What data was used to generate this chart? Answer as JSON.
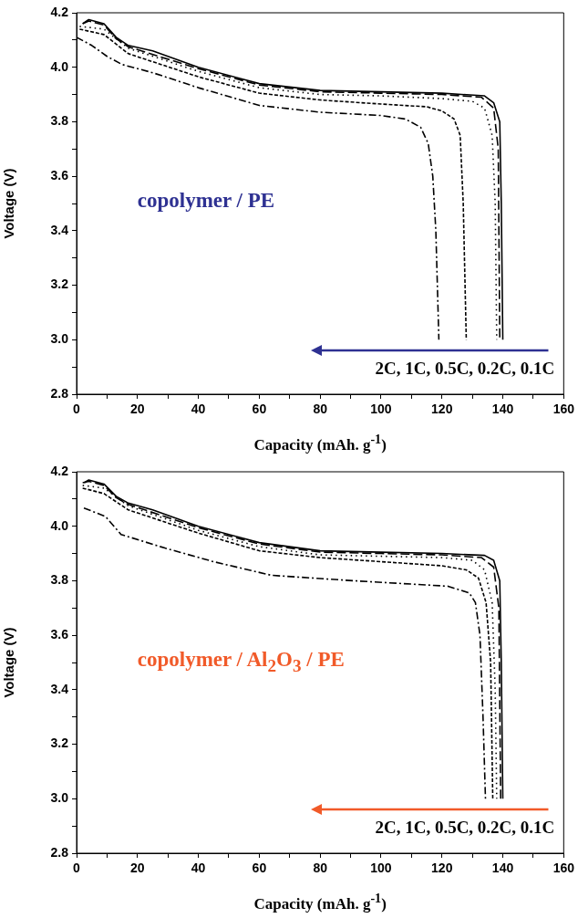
{
  "chart_data": [
    {
      "type": "line",
      "xlabel": "Capacity (mAh. g$^{-1}$)",
      "ylabel": "Voltage (V)",
      "annotations": [
        "copolymer / PE",
        "2C, 1C, 0.5C, 0.2C, 0.1C"
      ],
      "xlim": [
        0,
        160
      ],
      "xticks": [
        0,
        {
          "value": 10,
          "label": null
        },
        20,
        {
          "value": 30,
          "label": null
        },
        40,
        {
          "value": 50,
          "label": null
        },
        60,
        {
          "value": 70,
          "label": null
        },
        80,
        {
          "value": 90,
          "label": null
        },
        100,
        {
          "value": 110,
          "label": null
        },
        120,
        {
          "value": 130,
          "label": null
        },
        140,
        {
          "value": 150,
          "label": null
        },
        160
      ],
      "ylim": [
        2.8,
        4.2
      ],
      "yticks": [
        2.8,
        {
          "value": 2.9,
          "label": null
        },
        {
          "value": 3,
          "label": "3.0"
        },
        {
          "value": 3.1,
          "label": null
        },
        3.2,
        {
          "value": 3.3,
          "label": null
        },
        3.4,
        {
          "value": 3.5,
          "label": null
        },
        3.6,
        {
          "value": 3.7,
          "label": null
        },
        3.8,
        {
          "value": 3.9,
          "label": null
        },
        {
          "value": 4,
          "label": "4.0"
        },
        {
          "value": 4.1,
          "label": null
        },
        4.2
      ],
      "legend": false,
      "marker": "none",
      "grid": false,
      "series": [
        {
          "color": "#000000",
          "line_style": "solid",
          "x": [
            2,
            4,
            9,
            13,
            17,
            25,
            40,
            60,
            80,
            100,
            120,
            134,
            137,
            139,
            139.5,
            140
          ],
          "values": [
            4.16,
            4.175,
            4.16,
            4.11,
            4.08,
            4.06,
            4.0,
            3.94,
            3.915,
            3.91,
            3.905,
            3.895,
            3.87,
            3.8,
            3.5,
            3.0
          ]
        },
        {
          "color": "#000000",
          "line_style": "longdash",
          "x": [
            2,
            4,
            9,
            13,
            17,
            40,
            60,
            80,
            100,
            120,
            133,
            137,
            138.5,
            139
          ],
          "values": [
            4.16,
            4.17,
            4.155,
            4.105,
            4.075,
            3.995,
            3.935,
            3.91,
            3.905,
            3.9,
            3.89,
            3.85,
            3.7,
            3.0
          ]
        },
        {
          "color": "#000000",
          "line_style": "dotted",
          "x": [
            1,
            9,
            17,
            40,
            60,
            80,
            100,
            120,
            130,
            134,
            136.5,
            137.5,
            138
          ],
          "values": [
            4.15,
            4.14,
            4.07,
            3.985,
            3.925,
            3.9,
            3.895,
            3.885,
            3.875,
            3.85,
            3.75,
            3.5,
            3.0
          ]
        },
        {
          "color": "#000000",
          "line_style": "dashed",
          "x": [
            1,
            9,
            17,
            40,
            60,
            80,
            100,
            115,
            120,
            124,
            126,
            127,
            128
          ],
          "values": [
            4.14,
            4.12,
            4.05,
            3.965,
            3.905,
            3.88,
            3.865,
            3.855,
            3.84,
            3.81,
            3.75,
            3.5,
            3.0
          ]
        },
        {
          "color": "#000000",
          "line_style": "dashdot",
          "x": [
            0,
            5,
            10,
            15,
            25,
            40,
            60,
            80,
            100,
            108,
            113,
            115.5,
            117,
            118,
            119
          ],
          "values": [
            4.11,
            4.08,
            4.04,
            4.01,
            3.98,
            3.925,
            3.86,
            3.835,
            3.823,
            3.81,
            3.78,
            3.72,
            3.6,
            3.4,
            3.0
          ]
        }
      ]
    },
    {
      "type": "line",
      "xlabel": "Capacity (mAh. g$^{-1}$)",
      "ylabel": "Voltage (V)",
      "annotations": [
        "copolymer / Al$_{2}$O$_{3}$ / PE",
        "2C, 1C, 0.5C, 0.2C, 0.1C"
      ],
      "xlim": [
        0,
        160
      ],
      "xticks": [
        0,
        {
          "value": 10,
          "label": null
        },
        20,
        {
          "value": 30,
          "label": null
        },
        40,
        {
          "value": 50,
          "label": null
        },
        60,
        {
          "value": 70,
          "label": null
        },
        80,
        {
          "value": 90,
          "label": null
        },
        100,
        {
          "value": 110,
          "label": null
        },
        120,
        {
          "value": 130,
          "label": null
        },
        140,
        {
          "value": 150,
          "label": null
        },
        160
      ],
      "ylim": [
        2.8,
        4.2
      ],
      "yticks": [
        2.8,
        {
          "value": 2.9,
          "label": null
        },
        {
          "value": 3,
          "label": "3.0"
        },
        {
          "value": 3.1,
          "label": null
        },
        3.2,
        {
          "value": 3.3,
          "label": null
        },
        3.4,
        {
          "value": 3.5,
          "label": null
        },
        3.6,
        {
          "value": 3.7,
          "label": null
        },
        3.8,
        {
          "value": 3.9,
          "label": null
        },
        {
          "value": 4,
          "label": "4.0"
        },
        {
          "value": 4.1,
          "label": null
        },
        4.2
      ],
      "legend": false,
      "marker": "none",
      "grid": false,
      "series": [
        {
          "color": "#000000",
          "line_style": "solid",
          "x": [
            2.5,
            4,
            9,
            13,
            17,
            25,
            40,
            60,
            80,
            100,
            120,
            134,
            137,
            139,
            139.5,
            140
          ],
          "values": [
            4.16,
            4.17,
            4.155,
            4.11,
            4.085,
            4.06,
            4.0,
            3.94,
            3.91,
            3.905,
            3.9,
            3.893,
            3.875,
            3.8,
            3.5,
            3.0
          ]
        },
        {
          "color": "#000000",
          "line_style": "longdash",
          "x": [
            2,
            4,
            9,
            13,
            17,
            40,
            60,
            80,
            100,
            120,
            133,
            137,
            138.7,
            139.3
          ],
          "values": [
            4.16,
            4.165,
            4.15,
            4.105,
            4.08,
            3.995,
            3.935,
            3.905,
            3.9,
            3.895,
            3.885,
            3.85,
            3.7,
            3.0
          ]
        },
        {
          "color": "#000000",
          "line_style": "dotted",
          "x": [
            2,
            9,
            17,
            40,
            60,
            80,
            100,
            120,
            130,
            134,
            136.5,
            137.5,
            138
          ],
          "values": [
            4.15,
            4.14,
            4.075,
            3.985,
            3.925,
            3.895,
            3.89,
            3.885,
            3.875,
            3.84,
            3.72,
            3.4,
            3.0
          ]
        },
        {
          "color": "#000000",
          "line_style": "dashed",
          "x": [
            2,
            9,
            17,
            40,
            60,
            80,
            100,
            120,
            128,
            132,
            134.5,
            136,
            136.7
          ],
          "values": [
            4.14,
            4.12,
            4.06,
            3.975,
            3.91,
            3.885,
            3.87,
            3.855,
            3.84,
            3.81,
            3.72,
            3.5,
            3.0
          ]
        },
        {
          "color": "#000000",
          "line_style": "dashdot",
          "x": [
            2.4,
            9.5,
            14.6,
            29,
            45,
            64,
            91,
            122,
            129,
            131,
            132.5,
            133.5,
            134.3
          ],
          "values": [
            4.067,
            4.036,
            3.97,
            3.92,
            3.87,
            3.82,
            3.8,
            3.78,
            3.755,
            3.72,
            3.6,
            3.3,
            3.0
          ]
        }
      ]
    }
  ]
}
